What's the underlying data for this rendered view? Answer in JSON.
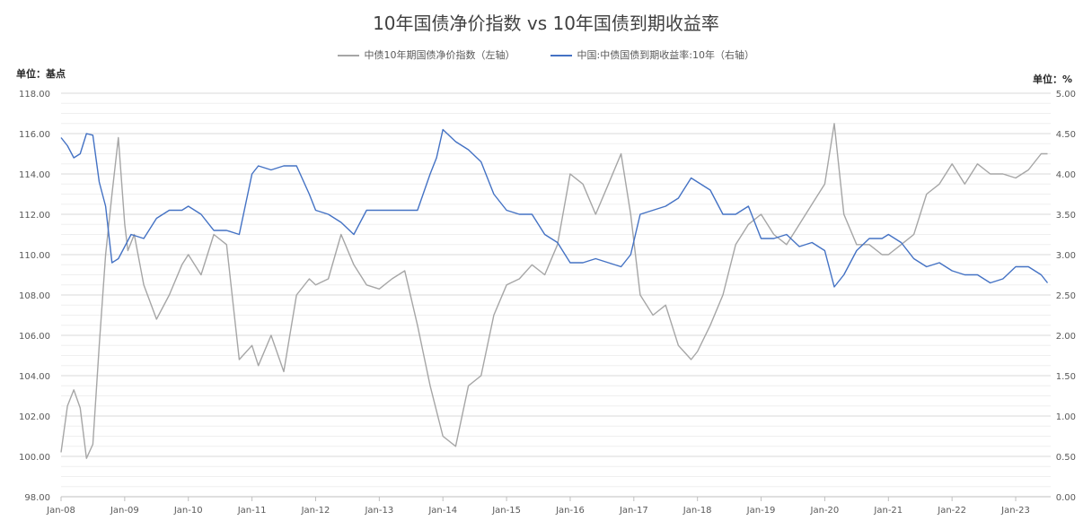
{
  "chart_data": {
    "type": "line",
    "title": "10年国债净价指数 vs 10年国债到期收益率",
    "unit_left": "单位：基点",
    "unit_right": "单位：%",
    "x_ticks": [
      "Jan-08",
      "Jan-09",
      "Jan-10",
      "Jan-11",
      "Jan-12",
      "Jan-13",
      "Jan-14",
      "Jan-15",
      "Jan-16",
      "Jan-17",
      "Jan-18",
      "Jan-19",
      "Jan-20",
      "Jan-21",
      "Jan-22",
      "Jan-23"
    ],
    "y_left": {
      "ticks": [
        "98.00",
        "100.00",
        "102.00",
        "104.00",
        "106.00",
        "108.00",
        "110.00",
        "112.00",
        "114.00",
        "116.00",
        "118.00"
      ],
      "min": 98,
      "max": 118
    },
    "y_right": {
      "ticks": [
        "0.00",
        "0.50",
        "1.00",
        "1.50",
        "2.00",
        "2.50",
        "3.00",
        "3.50",
        "4.00",
        "4.50",
        "5.00"
      ],
      "min": 0,
      "max": 5
    },
    "legend_position": "top",
    "grid": true,
    "series": [
      {
        "name": "中债10年期国债净价指数（左轴）",
        "axis": "left",
        "color": "#a6a6a6",
        "x": [
          2008.0,
          2008.1,
          2008.2,
          2008.3,
          2008.4,
          2008.5,
          2008.6,
          2008.7,
          2008.8,
          2008.9,
          2009.0,
          2009.05,
          2009.15,
          2009.3,
          2009.5,
          2009.7,
          2009.9,
          2010.0,
          2010.2,
          2010.4,
          2010.6,
          2010.8,
          2011.0,
          2011.1,
          2011.3,
          2011.5,
          2011.7,
          2011.9,
          2012.0,
          2012.2,
          2012.4,
          2012.6,
          2012.8,
          2013.0,
          2013.2,
          2013.4,
          2013.6,
          2013.8,
          2014.0,
          2014.2,
          2014.4,
          2014.6,
          2014.8,
          2015.0,
          2015.2,
          2015.4,
          2015.6,
          2015.8,
          2016.0,
          2016.2,
          2016.4,
          2016.6,
          2016.8,
          2016.95,
          2017.1,
          2017.3,
          2017.5,
          2017.7,
          2017.9,
          2018.0,
          2018.2,
          2018.4,
          2018.6,
          2018.8,
          2019.0,
          2019.2,
          2019.4,
          2019.6,
          2019.8,
          2020.0,
          2020.15,
          2020.3,
          2020.5,
          2020.7,
          2020.9,
          2021.0,
          2021.2,
          2021.4,
          2021.6,
          2021.8,
          2022.0,
          2022.2,
          2022.4,
          2022.6,
          2022.8,
          2023.0,
          2023.2,
          2023.4,
          2023.5
        ],
        "values": [
          100.2,
          102.5,
          103.3,
          102.4,
          99.9,
          100.6,
          105.5,
          110.0,
          113.0,
          115.8,
          111.5,
          110.2,
          111.0,
          108.5,
          106.8,
          108.0,
          109.5,
          110.0,
          109.0,
          111.0,
          110.5,
          104.8,
          105.5,
          104.5,
          106.0,
          104.2,
          108.0,
          108.8,
          108.5,
          108.8,
          111.0,
          109.5,
          108.5,
          108.3,
          108.8,
          109.2,
          106.5,
          103.5,
          101.0,
          100.5,
          103.5,
          104.0,
          107.0,
          108.5,
          108.8,
          109.5,
          109.0,
          110.5,
          114.0,
          113.5,
          112.0,
          113.5,
          115.0,
          112.0,
          108.0,
          107.0,
          107.5,
          105.5,
          104.8,
          105.2,
          106.5,
          108.0,
          110.5,
          111.5,
          112.0,
          111.0,
          110.5,
          111.5,
          112.5,
          113.5,
          116.5,
          112.0,
          110.5,
          110.5,
          110.0,
          110.0,
          110.5,
          111.0,
          113.0,
          113.5,
          114.5,
          113.5,
          114.5,
          114.0,
          114.0,
          113.8,
          114.2,
          115.0,
          115.0
        ]
      },
      {
        "name": "中国:中债国债到期收益率:10年（右轴）",
        "axis": "right",
        "color": "#4472c4",
        "x": [
          2008.0,
          2008.1,
          2008.2,
          2008.3,
          2008.4,
          2008.5,
          2008.6,
          2008.7,
          2008.8,
          2008.9,
          2009.0,
          2009.1,
          2009.3,
          2009.5,
          2009.7,
          2009.9,
          2010.0,
          2010.2,
          2010.4,
          2010.6,
          2010.8,
          2011.0,
          2011.1,
          2011.3,
          2011.5,
          2011.7,
          2011.9,
          2012.0,
          2012.2,
          2012.4,
          2012.6,
          2012.8,
          2013.0,
          2013.2,
          2013.4,
          2013.6,
          2013.8,
          2013.9,
          2014.0,
          2014.2,
          2014.4,
          2014.6,
          2014.8,
          2015.0,
          2015.2,
          2015.4,
          2015.6,
          2015.8,
          2016.0,
          2016.2,
          2016.4,
          2016.6,
          2016.8,
          2016.95,
          2017.1,
          2017.3,
          2017.5,
          2017.7,
          2017.9,
          2018.0,
          2018.2,
          2018.4,
          2018.6,
          2018.8,
          2019.0,
          2019.2,
          2019.4,
          2019.6,
          2019.8,
          2020.0,
          2020.15,
          2020.3,
          2020.5,
          2020.7,
          2020.9,
          2021.0,
          2021.2,
          2021.4,
          2021.6,
          2021.8,
          2022.0,
          2022.2,
          2022.4,
          2022.6,
          2022.8,
          2023.0,
          2023.2,
          2023.4,
          2023.5
        ],
        "values": [
          4.45,
          4.35,
          4.2,
          4.25,
          4.5,
          4.48,
          3.9,
          3.6,
          2.9,
          2.95,
          3.1,
          3.25,
          3.2,
          3.45,
          3.55,
          3.55,
          3.6,
          3.5,
          3.3,
          3.3,
          3.25,
          4.0,
          4.1,
          4.05,
          4.1,
          4.1,
          3.75,
          3.55,
          3.5,
          3.4,
          3.25,
          3.55,
          3.55,
          3.55,
          3.55,
          3.55,
          4.0,
          4.2,
          4.55,
          4.4,
          4.3,
          4.15,
          3.75,
          3.55,
          3.5,
          3.5,
          3.25,
          3.15,
          2.9,
          2.9,
          2.95,
          2.9,
          2.85,
          3.0,
          3.5,
          3.55,
          3.6,
          3.7,
          3.95,
          3.9,
          3.8,
          3.5,
          3.5,
          3.6,
          3.2,
          3.2,
          3.25,
          3.1,
          3.15,
          3.05,
          2.6,
          2.75,
          3.05,
          3.2,
          3.2,
          3.25,
          3.15,
          2.95,
          2.85,
          2.9,
          2.8,
          2.75,
          2.75,
          2.65,
          2.7,
          2.85,
          2.85,
          2.75,
          2.65
        ]
      }
    ]
  }
}
